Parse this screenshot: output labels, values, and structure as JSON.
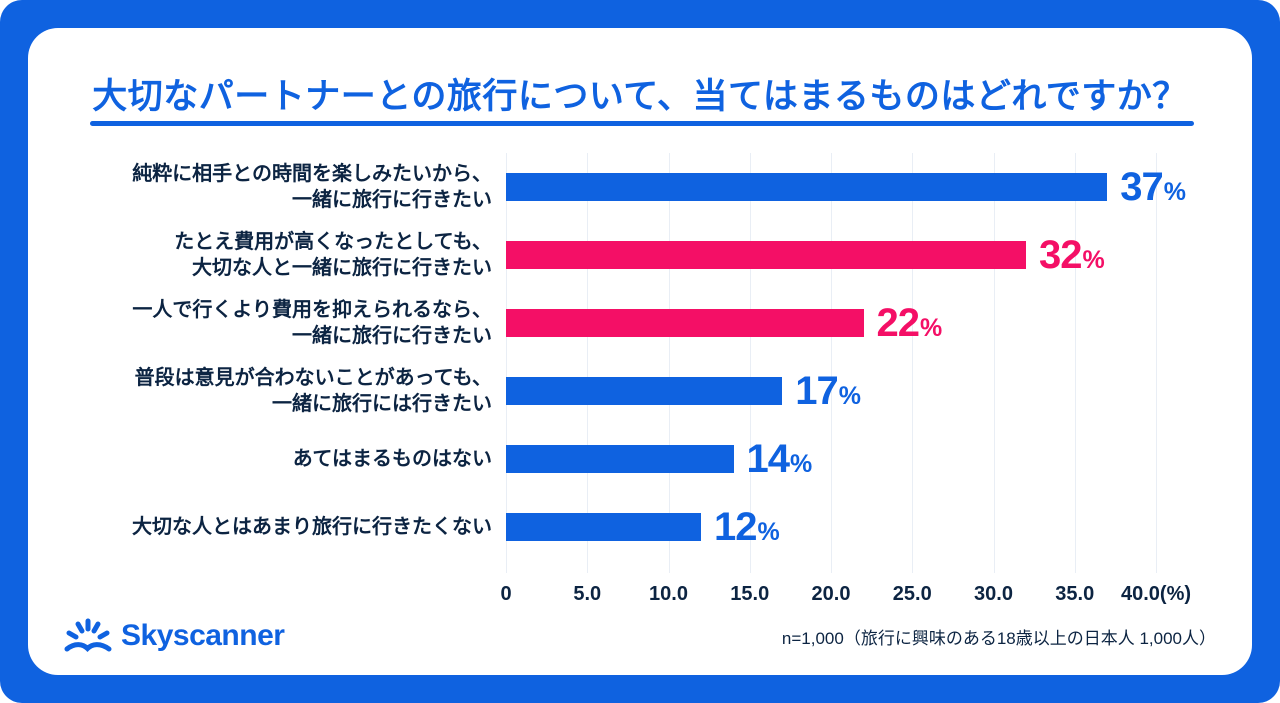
{
  "colors": {
    "brand_blue": "#0F62E0",
    "accent_pink": "#F40F66",
    "text_navy": "#0C2442",
    "gridline": "#E9EEF5",
    "card_background": "#FFFFFF"
  },
  "header": {
    "title": "大切なパートナーとの旅行について、当てはまるものはどれですか？"
  },
  "chart_data": {
    "type": "bar",
    "orientation": "horizontal",
    "title": "大切なパートナーとの旅行について、当てはまるものはどれですか？",
    "categories": [
      "純粋に相手との時間を楽しみたいから、\n一緒に旅行に行きたい",
      "たとえ費用が高くなったとしても、\n大切な人と一緒に旅行に行きたい",
      "一人で行くより費用を抑えられるなら、\n一緒に旅行に行きたい",
      "普段は意見が合わないことがあっても、\n一緒に旅行には行きたい",
      "あてはまるものはない",
      "大切な人とはあまり旅行に行きたくない"
    ],
    "values": [
      37,
      32,
      22,
      17,
      14,
      12
    ],
    "value_labels": [
      "37",
      "32",
      "22",
      "17",
      "14",
      "12"
    ],
    "value_suffix": "%",
    "bar_colors": [
      "#0F62E0",
      "#F40F66",
      "#F40F66",
      "#0F62E0",
      "#0F62E0",
      "#0F62E0"
    ],
    "xlabel": "",
    "ylabel": "",
    "xlim": [
      0,
      40
    ],
    "x_ticks": [
      "0",
      "5.0",
      "10.0",
      "15.0",
      "20.0",
      "25.0",
      "30.0",
      "35.0",
      "40.0(%)"
    ],
    "grid": "vertical-every-5",
    "legend_position": "none"
  },
  "footer": {
    "logo_icon": "skyscanner-sun-icon",
    "logo_text": "Skyscanner",
    "note": "n=1,000（旅行に興味のある18歳以上の日本人 1,000人）"
  }
}
